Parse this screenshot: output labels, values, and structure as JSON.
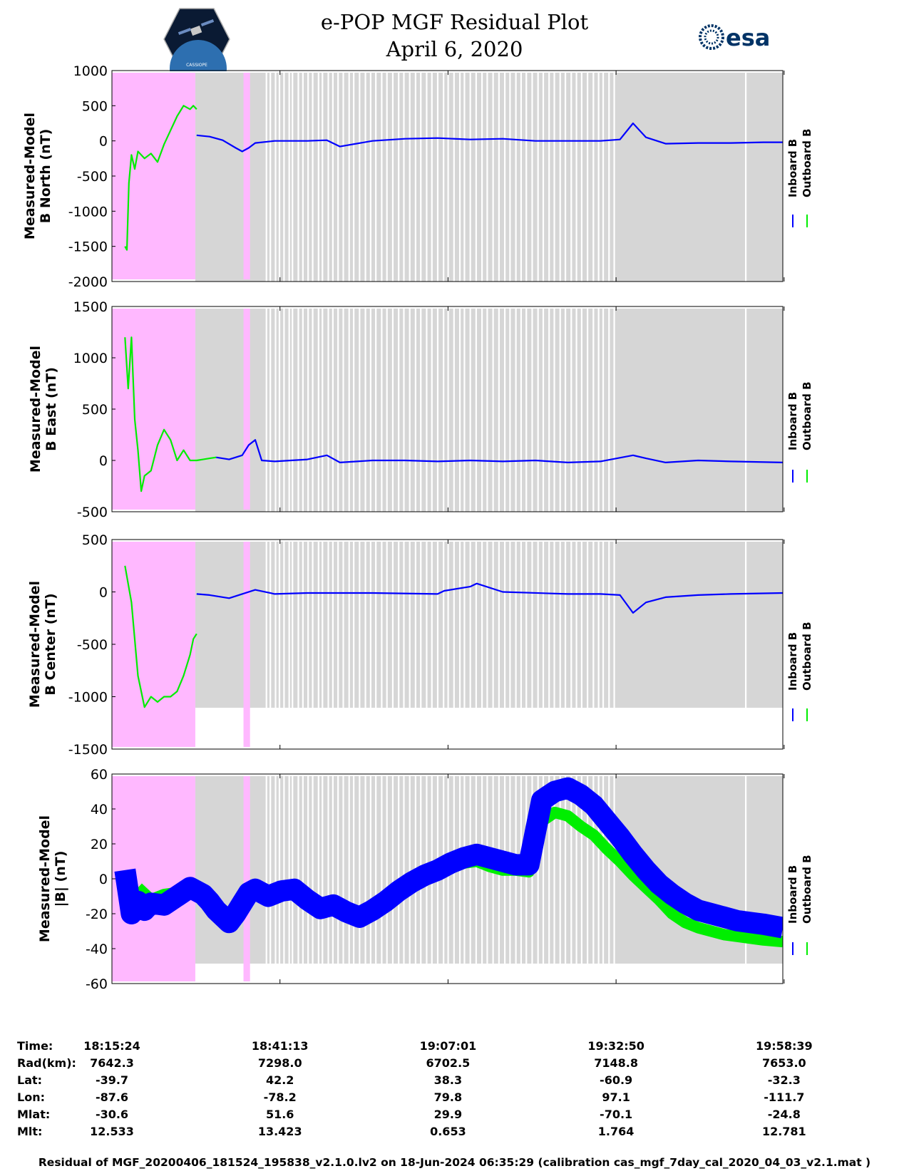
{
  "header": {
    "title_line1": "e-POP MGF Residual Plot",
    "title_line2": "April 6, 2020",
    "logo_left_text": "CASSIOPE",
    "logo_right_text": "esa"
  },
  "colors": {
    "inboard": "#0000ff",
    "outboard": "#00ee00",
    "pink_region": "#ffb8ff",
    "gray_region": "#d6d6d6"
  },
  "legend": {
    "inboard": "Inboard B",
    "outboard": "Outboard B"
  },
  "chart_data": [
    {
      "type": "line",
      "id": "north",
      "ylabel_line1": "Measured-Model",
      "ylabel_line2": "B North (nT)",
      "ylim": [
        -2000,
        1000
      ],
      "yticks": [
        1000,
        500,
        0,
        -500,
        -1000,
        -1500,
        -2000
      ],
      "xlim": [
        0,
        103
      ],
      "series": [
        {
          "name": "Outboard B",
          "x": [
            2.0,
            2.3,
            2.6,
            3.0,
            3.5,
            4.0,
            5.0,
            6.0,
            7.0,
            8.0,
            9.0,
            10.0,
            11.0,
            12.0,
            12.5,
            13.0
          ],
          "y": [
            -1500,
            -1550,
            -600,
            -200,
            -400,
            -150,
            -250,
            -180,
            -300,
            -50,
            150,
            350,
            500,
            450,
            500,
            450
          ]
        },
        {
          "name": "Inboard B",
          "x": [
            13.0,
            15.0,
            17.0,
            19.0,
            20.0,
            21.0,
            22.0,
            25.0,
            30.0,
            33.0,
            35.0,
            40.0,
            45.0,
            50.0,
            55.0,
            60.0,
            65.0,
            70.0,
            75.0,
            78.0,
            80.0,
            82.0,
            85.0,
            90.0,
            95.0,
            100.0,
            103.0
          ],
          "y": [
            80,
            60,
            10,
            -100,
            -150,
            -100,
            -30,
            0,
            0,
            10,
            -80,
            0,
            30,
            40,
            20,
            30,
            0,
            0,
            0,
            20,
            250,
            50,
            -40,
            -30,
            -30,
            -20,
            -20
          ]
        }
      ]
    },
    {
      "type": "line",
      "id": "east",
      "ylabel_line1": "Measured-Model",
      "ylabel_line2": "B East (nT)",
      "ylim": [
        -500,
        1500
      ],
      "yticks": [
        1500,
        1000,
        500,
        0,
        -500
      ],
      "xlim": [
        0,
        103
      ],
      "series": [
        {
          "name": "Outboard B",
          "x": [
            2.0,
            2.5,
            3.0,
            3.5,
            4.0,
            4.5,
            5.0,
            6.0,
            7.0,
            8.0,
            9.0,
            10.0,
            11.0,
            12.0,
            12.8,
            13.0,
            14.0,
            15.0,
            16.0
          ],
          "y": [
            1200,
            700,
            1200,
            400,
            100,
            -300,
            -150,
            -100,
            150,
            300,
            200,
            0,
            100,
            0,
            0,
            0,
            10,
            20,
            30
          ]
        },
        {
          "name": "Inboard B",
          "x": [
            16.0,
            18.0,
            20.0,
            21.0,
            22.0,
            23.0,
            25.0,
            30.0,
            33.0,
            35.0,
            40.0,
            45.0,
            50.0,
            55.0,
            60.0,
            65.0,
            70.0,
            75.0,
            80.0,
            82.0,
            85.0,
            90.0,
            95.0,
            103.0
          ],
          "y": [
            30,
            10,
            50,
            150,
            200,
            0,
            -10,
            10,
            50,
            -20,
            0,
            0,
            -10,
            0,
            -10,
            0,
            -20,
            -10,
            50,
            20,
            -20,
            0,
            -10,
            -20
          ]
        }
      ]
    },
    {
      "type": "line",
      "id": "center",
      "ylabel_line1": "Measured-Model",
      "ylabel_line2": "B Center (nT)",
      "ylim": [
        -1500,
        500
      ],
      "yticks": [
        500,
        0,
        -500,
        -1000,
        -1500
      ],
      "xlim": [
        0,
        103
      ],
      "series": [
        {
          "name": "Outboard B",
          "x": [
            2.0,
            3.0,
            4.0,
            5.0,
            6.0,
            7.0,
            8.0,
            9.0,
            10.0,
            11.0,
            12.0,
            12.5,
            13.0
          ],
          "y": [
            250,
            -100,
            -800,
            -1100,
            -1000,
            -1050,
            -1000,
            -1000,
            -950,
            -800,
            -600,
            -450,
            -400
          ]
        },
        {
          "name": "Inboard B",
          "x": [
            13.0,
            15.0,
            18.0,
            20.0,
            22.0,
            25.0,
            30.0,
            40.0,
            50.0,
            51.0,
            55.0,
            56.0,
            60.0,
            70.0,
            75.0,
            78.0,
            80.0,
            82.0,
            85.0,
            90.0,
            95.0,
            103.0
          ],
          "y": [
            -20,
            -30,
            -60,
            -20,
            20,
            -20,
            -10,
            -10,
            -20,
            10,
            50,
            80,
            0,
            -20,
            -20,
            -30,
            -200,
            -100,
            -50,
            -30,
            -20,
            -10
          ]
        }
      ]
    },
    {
      "type": "line",
      "id": "total",
      "ylabel_line1": "Measured-Model",
      "ylabel_line2": "|B| (nT)",
      "ylim": [
        -60,
        60
      ],
      "yticks": [
        60,
        40,
        20,
        0,
        -20,
        -40,
        -60
      ],
      "xlim": [
        0,
        103
      ],
      "series": [
        {
          "name": "Outboard B",
          "x": [
            4,
            6,
            8,
            10,
            12,
            14,
            16,
            18,
            20,
            22,
            24,
            26,
            28,
            30,
            32,
            34,
            36,
            38,
            40,
            42,
            44,
            46,
            48,
            50,
            52,
            54,
            56,
            58,
            60,
            62,
            64,
            66,
            68,
            70,
            72,
            74,
            76,
            78,
            80,
            82,
            84,
            86,
            88,
            90,
            92,
            94,
            96,
            98,
            100,
            103
          ],
          "y": [
            -5,
            -12,
            -9,
            -8,
            -7,
            -10,
            -16,
            -22,
            -14,
            -6,
            -8,
            -6,
            -5,
            -13,
            -16,
            -14,
            -17,
            -20,
            -17,
            -12,
            -7,
            -2,
            2,
            4,
            6,
            9,
            10,
            7,
            5,
            5,
            4,
            33,
            38,
            36,
            30,
            25,
            17,
            10,
            2,
            -5,
            -12,
            -20,
            -25,
            -28,
            -30,
            -32,
            -33,
            -34,
            -35,
            -36
          ]
        },
        {
          "name": "Inboard B",
          "x": [
            2,
            3,
            4,
            5,
            6,
            8,
            10,
            12,
            14,
            15,
            16,
            18,
            19,
            20,
            21,
            22,
            24,
            26,
            28,
            30,
            32,
            34,
            36,
            38,
            40,
            42,
            44,
            46,
            48,
            50,
            52,
            54,
            56,
            58,
            60,
            62,
            64,
            66,
            68,
            70,
            72,
            74,
            76,
            78,
            80,
            82,
            84,
            86,
            88,
            90,
            92,
            94,
            96,
            98,
            100,
            103
          ],
          "y": [
            5,
            -20,
            -13,
            -18,
            -14,
            -15,
            -10,
            -5,
            -9,
            -13,
            -18,
            -25,
            -20,
            -14,
            -8,
            -6,
            -10,
            -7,
            -6,
            -12,
            -17,
            -15,
            -19,
            -22,
            -18,
            -13,
            -7,
            -2,
            2,
            5,
            9,
            12,
            14,
            12,
            10,
            8,
            8,
            45,
            50,
            52,
            48,
            42,
            33,
            24,
            14,
            5,
            -3,
            -9,
            -14,
            -18,
            -20,
            -22,
            -24,
            -25,
            -26,
            -28
          ]
        }
      ]
    }
  ],
  "xaxis": {
    "row_labels": [
      "Time:",
      "Rad(km):",
      "Lat:",
      "Lon:",
      "Mlat:",
      "Mlt:"
    ],
    "ticks": [
      {
        "pos": 0,
        "values": [
          "18:15:24",
          "7642.3",
          "-39.7",
          "-87.6",
          "-30.6",
          "12.533"
        ]
      },
      {
        "pos": 25.8,
        "values": [
          "18:41:13",
          "7298.0",
          "42.2",
          "-78.2",
          "51.6",
          "13.423"
        ]
      },
      {
        "pos": 51.6,
        "values": [
          "19:07:01",
          "6702.5",
          "38.3",
          "79.8",
          "29.9",
          "0.653"
        ]
      },
      {
        "pos": 77.4,
        "values": [
          "19:32:50",
          "7148.8",
          "-60.9",
          "97.1",
          "-70.1",
          "1.764"
        ]
      },
      {
        "pos": 103.2,
        "values": [
          "19:58:39",
          "7653.0",
          "-32.3",
          "-111.7",
          "-24.8",
          "12.781"
        ]
      }
    ]
  },
  "regions": {
    "pink": [
      [
        0,
        12.8
      ],
      [
        20.2,
        21.2
      ]
    ],
    "gray_end": 103
  },
  "footer": "Residual of MGF_20200406_181524_195838_v2.1.0.lv2 on 18-Jun-2024 06:35:29 (calibration cas_mgf_7day_cal_2020_04_03_v2.1.mat )"
}
